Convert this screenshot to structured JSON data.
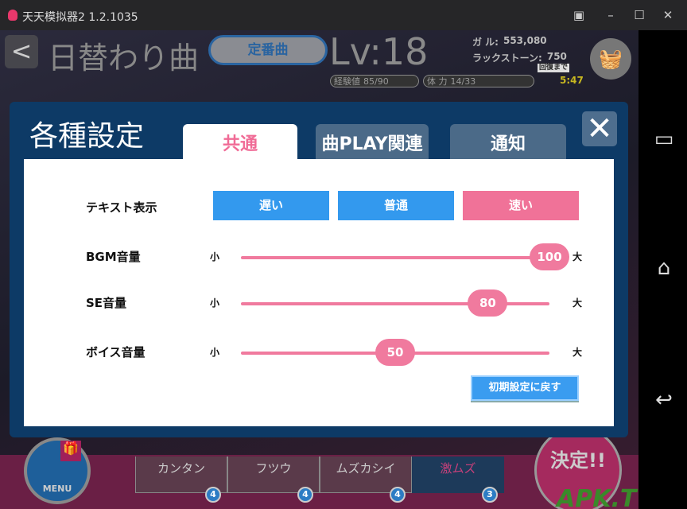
{
  "window": {
    "title": "天天模拟器2 1.2.1035",
    "buttons": [
      "▣",
      "–",
      "☐",
      "✕"
    ]
  },
  "header": {
    "back": "<",
    "title": "日替わり曲",
    "standard_button": "定番曲",
    "level": "Lv:18",
    "gold_label": "ガ ル:",
    "gold": "553,080",
    "stone_label": "ラックストーン:",
    "stone": "750",
    "exp_label": "経験値",
    "exp": "85/90",
    "stamina_label": "体 力",
    "stamina": "14/33",
    "recover_label": "回復まで",
    "recover_time": "5:47"
  },
  "dialog": {
    "title": "各種設定",
    "tabs": [
      {
        "label": "共通",
        "active": true
      },
      {
        "label": "曲PLAY関連",
        "active": false
      },
      {
        "label": "通知",
        "active": false
      }
    ],
    "close": "✕",
    "text_display": {
      "label": "テキスト表示",
      "options": [
        "遅い",
        "普通",
        "速い"
      ],
      "selected": "速い"
    },
    "sliders": [
      {
        "label": "BGM音量",
        "min_label": "小",
        "max_label": "大",
        "value": 100
      },
      {
        "label": "SE音量",
        "min_label": "小",
        "max_label": "大",
        "value": 80
      },
      {
        "label": "ボイス音量",
        "min_label": "小",
        "max_label": "大",
        "value": 50
      }
    ],
    "reset": "初期設定に戻す"
  },
  "bottom": {
    "menu": "MENU",
    "difficulties": [
      {
        "label": "カンタン",
        "count": "4"
      },
      {
        "label": "フツウ",
        "count": "4"
      },
      {
        "label": "ムズカシイ",
        "count": "4"
      },
      {
        "label": "激ムズ",
        "count": "3",
        "selected": true
      }
    ],
    "decide": "決定!!",
    "watermark": "APK.TW"
  },
  "colors": {
    "accent_pink": "#f07a9e",
    "accent_blue": "#3a9cf0",
    "dialog_bg": "#0d3a66"
  }
}
